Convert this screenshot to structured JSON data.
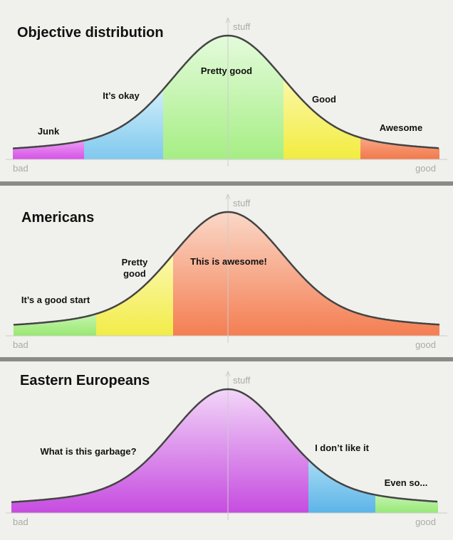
{
  "panels": [
    {
      "title": "Objective distribution",
      "axis": {
        "up": "stuff",
        "low": "bad",
        "high": "good"
      },
      "labels": [
        {
          "lines": [
            "Junk"
          ]
        },
        {
          "lines": [
            "It’s okay"
          ]
        },
        {
          "lines": [
            "Pretty good"
          ]
        },
        {
          "lines": [
            "Good"
          ]
        },
        {
          "lines": [
            "Awesome"
          ]
        }
      ]
    },
    {
      "title": "Americans",
      "axis": {
        "up": "stuff",
        "low": "bad",
        "high": "good"
      },
      "labels": [
        {
          "lines": [
            "It’s a good start"
          ]
        },
        {
          "lines": [
            "Pretty",
            "good"
          ]
        },
        {
          "lines": [
            "This is awesome!"
          ]
        }
      ]
    },
    {
      "title": "Eastern Europeans",
      "axis": {
        "up": "stuff",
        "low": "bad",
        "high": "good"
      },
      "labels": [
        {
          "lines": [
            "What is this garbage?"
          ]
        },
        {
          "lines": [
            "I don’t like it"
          ]
        },
        {
          "lines": [
            "Even so..."
          ]
        }
      ]
    }
  ]
}
